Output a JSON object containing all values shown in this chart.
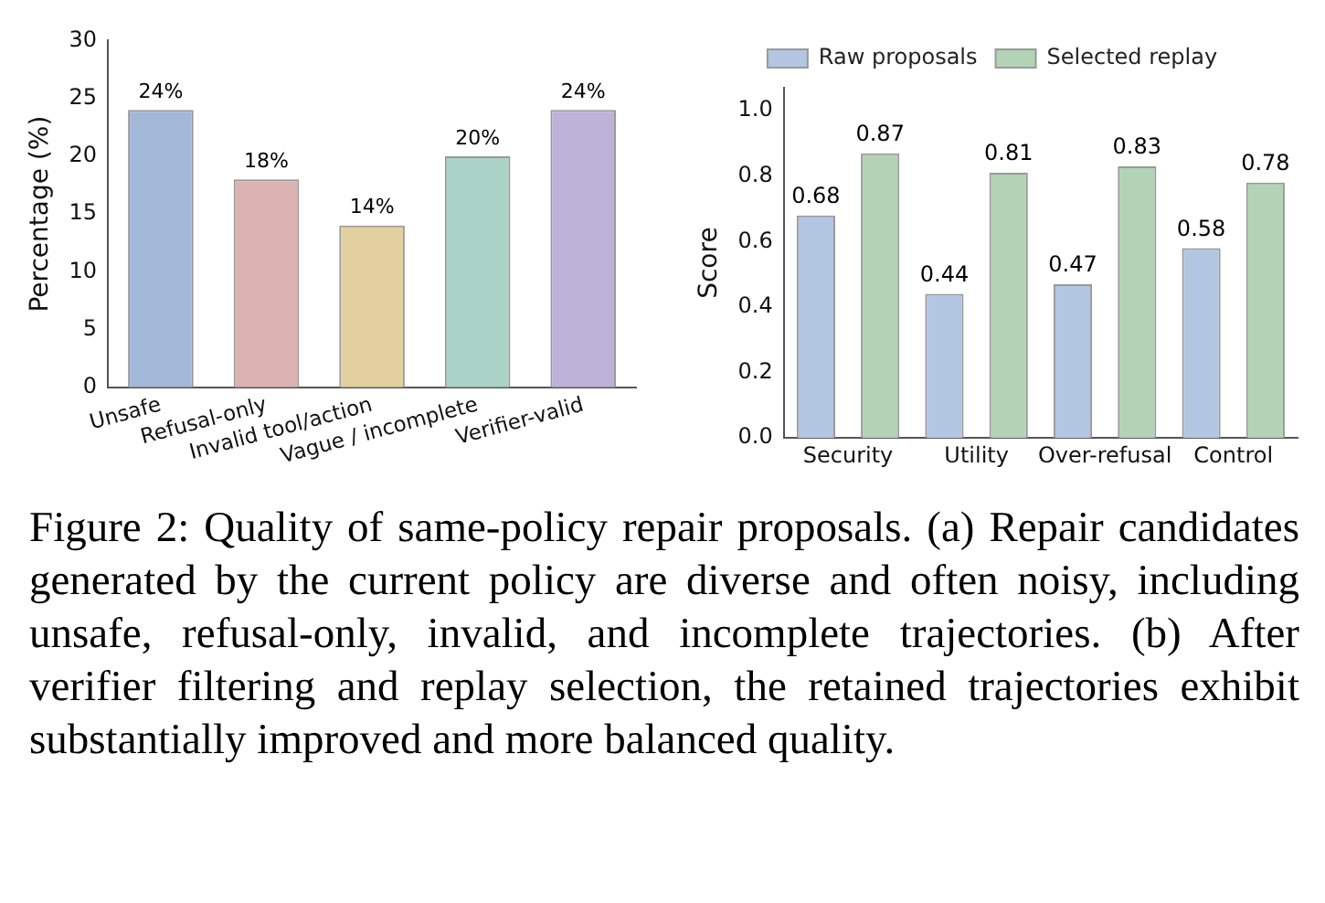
{
  "chart_data": [
    {
      "type": "bar",
      "ylabel": "Percentage (%)",
      "categories": [
        "Unsafe",
        "Refusal-only",
        "Invalid tool/action",
        "Vague / incomplete",
        "Verifier-valid"
      ],
      "values": [
        24,
        18,
        14,
        20,
        24
      ],
      "colors": [
        "#a3b8d8",
        "#dcb3b1",
        "#e3d0a0",
        "#abd2c6",
        "#bfb2d9"
      ],
      "value_labels": [
        "24%",
        "18%",
        "14%",
        "20%",
        "24%"
      ],
      "ylim": [
        0,
        30
      ],
      "yticks": [
        0,
        5,
        10,
        15,
        20,
        25,
        30
      ],
      "grid": false,
      "legend": false,
      "annotations": [
        "Figure 2:  Quality of same-policy repair proposals. (a) Repair candidates generated by the current policy are diverse and often noisy, including unsafe, refusal-only, invalid, and incomplete trajectories. (b) After verifier filtering and replay selection, the retained trajectories exhibit substantially improved and more balanced quality."
      ]
    },
    {
      "type": "bar",
      "ylabel": "Score",
      "categories": [
        "Security",
        "Utility",
        "Over-refusal",
        "Control"
      ],
      "series": [
        {
          "name": "Raw proposals",
          "color": "#b3c6e2",
          "values": [
            0.68,
            0.44,
            0.47,
            0.58
          ]
        },
        {
          "name": "Selected replay",
          "color": "#b2d3b5",
          "values": [
            0.87,
            0.81,
            0.83,
            0.78
          ]
        }
      ],
      "data_labels": true,
      "ylim": [
        0,
        1.07
      ],
      "yticks": [
        {
          "value": 0,
          "label": "0.0"
        },
        0.2,
        0.4,
        0.6,
        0.8,
        {
          "value": 1,
          "label": "1.0"
        }
      ],
      "grid": false,
      "legend": "top"
    }
  ]
}
